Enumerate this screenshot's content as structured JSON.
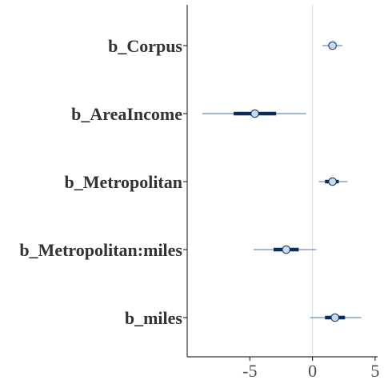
{
  "chart_data": {
    "type": "interval",
    "title": "",
    "xlabel": "",
    "ylabel": "",
    "xlim": [
      -10.0,
      5.2
    ],
    "xticks": [
      -5,
      0,
      5
    ],
    "xtick_labels": [
      "-5",
      "0",
      "5"
    ],
    "reference_line": 0,
    "grid": false,
    "colors": {
      "outer_interval": "#6e8fb5",
      "inner_interval": "#0b2d5b",
      "point_fill": "#c6dbef",
      "point_stroke": "#0b2d5b",
      "reference_line": "#d9d9d9",
      "axis": "#333333"
    },
    "parameters": [
      {
        "label": "b_Corpus",
        "median": 1.6,
        "inner": [
          1.3,
          1.9
        ],
        "outer": [
          0.8,
          2.4
        ]
      },
      {
        "label": "b_AreaIncome",
        "median": -4.6,
        "inner": [
          -6.3,
          -2.9
        ],
        "outer": [
          -8.8,
          -0.5
        ]
      },
      {
        "label": "b_Metropolitan",
        "median": 1.6,
        "inner": [
          1.0,
          2.1
        ],
        "outer": [
          0.5,
          2.8
        ]
      },
      {
        "label": "b_Metropolitan:miles",
        "median": -2.1,
        "inner": [
          -3.1,
          -1.1
        ],
        "outer": [
          -4.7,
          0.3
        ]
      },
      {
        "label": "b_miles",
        "median": 1.8,
        "inner": [
          1.0,
          2.6
        ],
        "outer": [
          -0.2,
          3.9
        ]
      }
    ]
  }
}
